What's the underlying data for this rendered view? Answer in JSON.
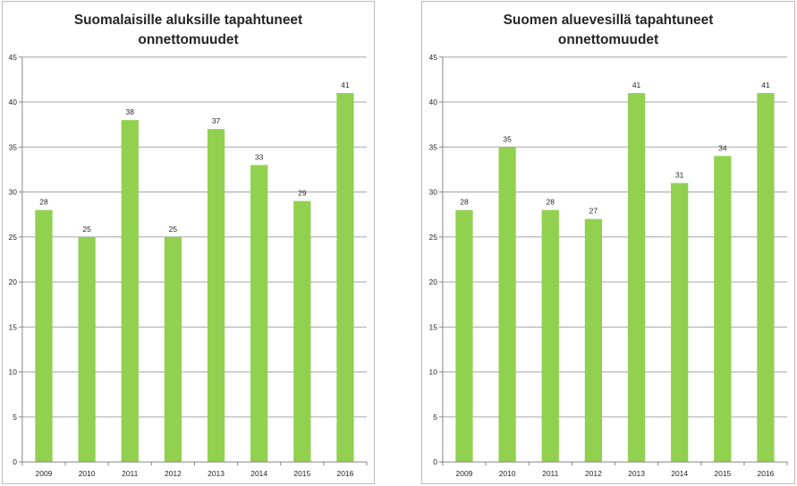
{
  "chart_data": [
    {
      "type": "bar",
      "title_lines": [
        "Suomalaisille aluksille tapahtuneet",
        "onnettomuudet"
      ],
      "categories": [
        "2009",
        "2010",
        "2011",
        "2012",
        "2013",
        "2014",
        "2015",
        "2016"
      ],
      "values": [
        28,
        25,
        38,
        25,
        37,
        33,
        29,
        41
      ],
      "ylim": [
        0,
        45
      ],
      "yticks": [
        0,
        5,
        10,
        15,
        20,
        25,
        30,
        35,
        40,
        45
      ],
      "grid": true,
      "legend": "none",
      "bar_color": "#92d050",
      "data_labels": true
    },
    {
      "type": "bar",
      "title_lines": [
        "Suomen aluevesillä tapahtuneet",
        "onnettomuudet"
      ],
      "categories": [
        "2009",
        "2010",
        "2011",
        "2012",
        "2013",
        "2014",
        "2015",
        "2016"
      ],
      "values": [
        28,
        35,
        28,
        27,
        41,
        31,
        34,
        41
      ],
      "ylim": [
        0,
        45
      ],
      "yticks": [
        0,
        5,
        10,
        15,
        20,
        25,
        30,
        35,
        40,
        45
      ],
      "grid": true,
      "legend": "none",
      "bar_color": "#92d050",
      "data_labels": true
    }
  ],
  "colors": {
    "gridline": "#a6a6a6",
    "axis": "#868686",
    "text": "#262626",
    "border": "#bcbcbc"
  }
}
